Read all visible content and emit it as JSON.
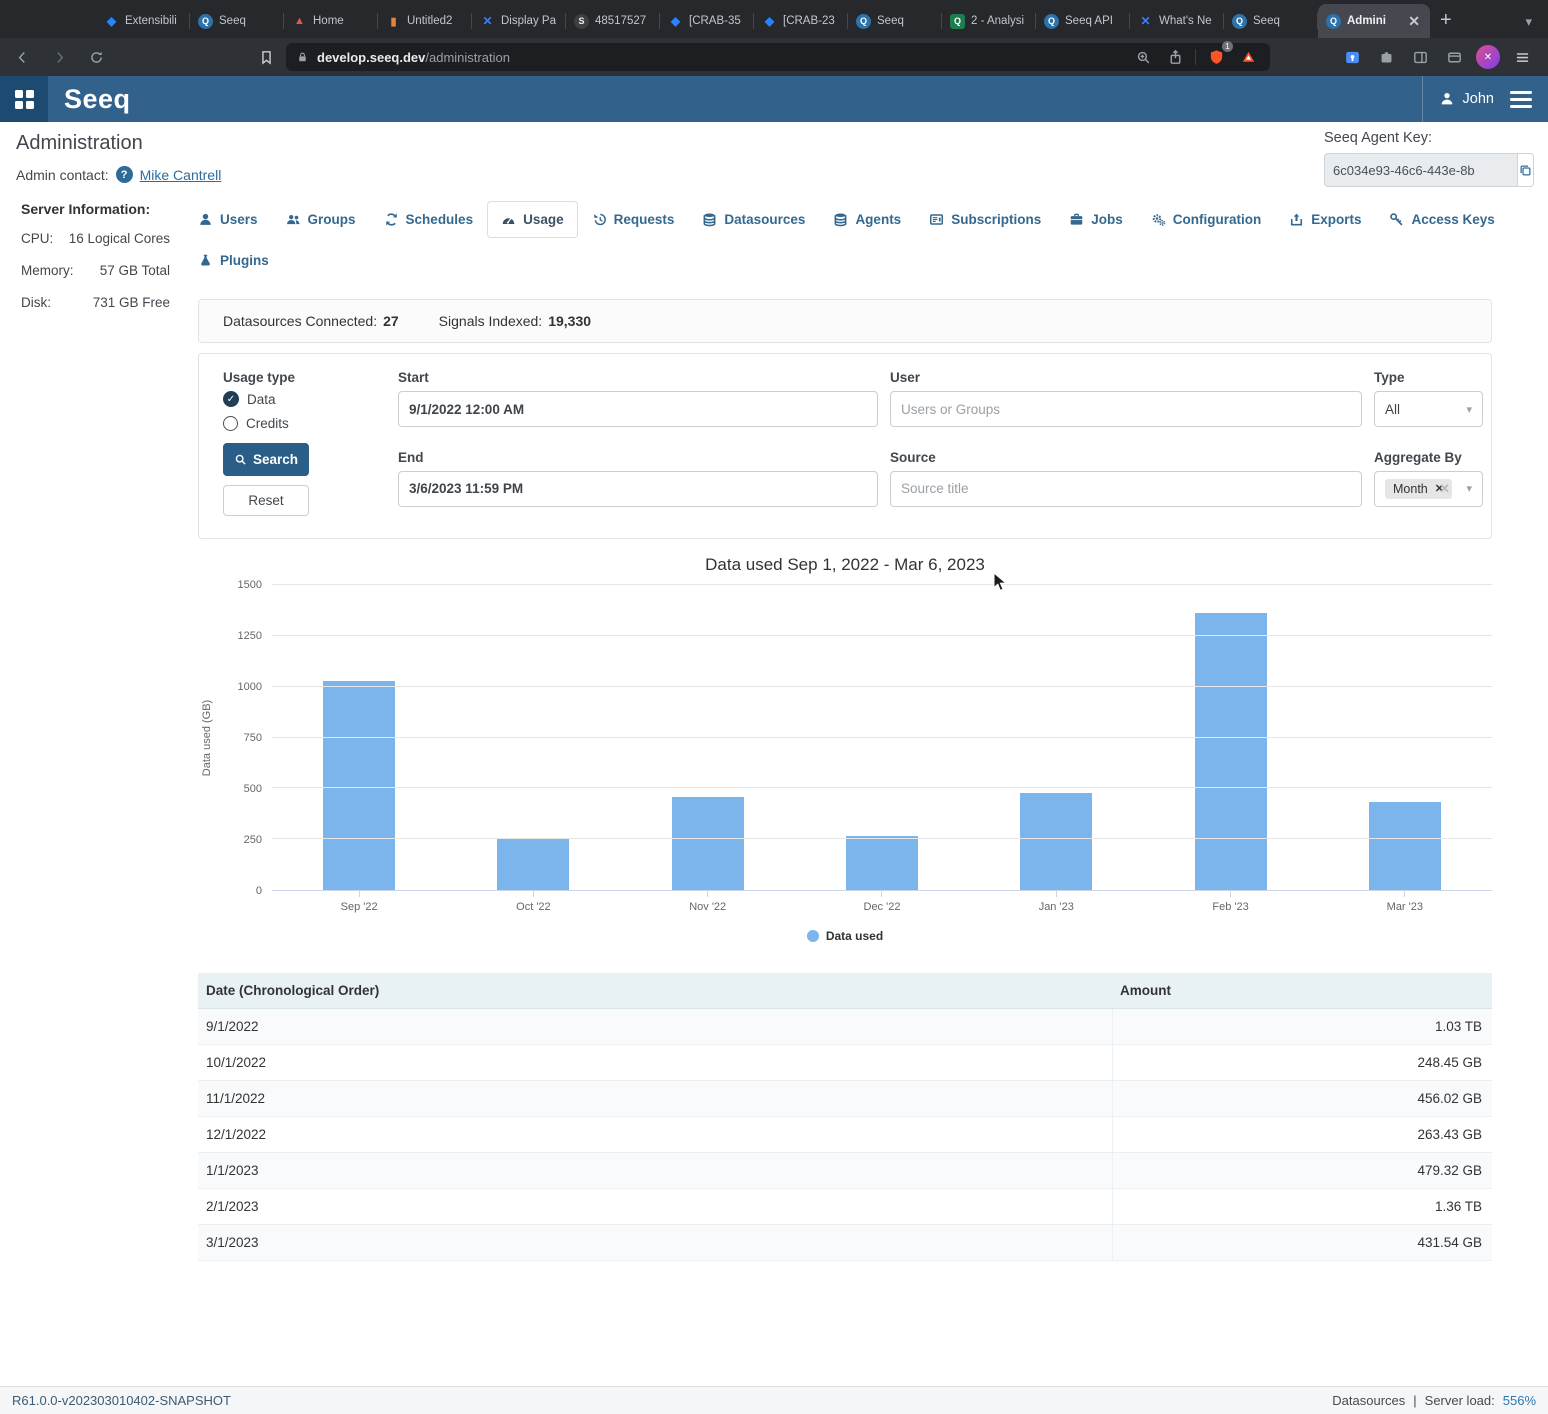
{
  "browser": {
    "tabs": [
      {
        "label": "Extensibili",
        "icon": "jira"
      },
      {
        "label": "Seeq",
        "icon": "seeq"
      },
      {
        "label": "Home",
        "icon": "home"
      },
      {
        "label": "Untitled2",
        "icon": "notebook"
      },
      {
        "label": "Display Pa",
        "icon": "xapp"
      },
      {
        "label": "48517527",
        "icon": "globe"
      },
      {
        "label": "[CRAB-35",
        "icon": "jira"
      },
      {
        "label": "[CRAB-23",
        "icon": "jira"
      },
      {
        "label": "Seeq",
        "icon": "seeq"
      },
      {
        "label": "2 - Analysi",
        "icon": "seeqgreen"
      },
      {
        "label": "Seeq API",
        "icon": "seeq"
      },
      {
        "label": "What's Ne",
        "icon": "xapp"
      },
      {
        "label": "Seeq",
        "icon": "seeq"
      },
      {
        "label": "Admini",
        "icon": "seeq",
        "active": true
      }
    ],
    "new_tab": "+",
    "url_domain": "develop.seeq.dev",
    "url_path": "/administration",
    "shield_badge": "1"
  },
  "appbar": {
    "brand": "Seeq",
    "user": "John"
  },
  "page": {
    "title": "Administration",
    "contact_label": "Admin contact:",
    "contact_name": "Mike Cantrell",
    "agent_key_label": "Seeq Agent Key:",
    "agent_key_value": "6c034e93-46c6-443e-8b",
    "server_heading": "Server Information:",
    "server_rows": [
      {
        "label": "CPU:",
        "value": "16 Logical Cores"
      },
      {
        "label": "Memory:",
        "value": "57 GB Total"
      },
      {
        "label": "Disk:",
        "value": "731 GB Free"
      }
    ]
  },
  "nav": {
    "tabs": [
      {
        "label": "Users",
        "icon": "user"
      },
      {
        "label": "Groups",
        "icon": "users"
      },
      {
        "label": "Schedules",
        "icon": "refresh"
      },
      {
        "label": "Usage",
        "icon": "gauge",
        "active": true
      },
      {
        "label": "Requests",
        "icon": "history"
      },
      {
        "label": "Datasources",
        "icon": "database"
      },
      {
        "label": "Agents",
        "icon": "database"
      },
      {
        "label": "Subscriptions",
        "icon": "subscriptions"
      },
      {
        "label": "Jobs",
        "icon": "briefcase"
      },
      {
        "label": "Configuration",
        "icon": "gears"
      },
      {
        "label": "Exports",
        "icon": "export"
      },
      {
        "label": "Access Keys",
        "icon": "key"
      },
      {
        "label": "Plugins",
        "icon": "flask",
        "row": 2
      }
    ]
  },
  "stats": {
    "datasources_label": "Datasources Connected:",
    "datasources_value": "27",
    "signals_label": "Signals Indexed:",
    "signals_value": "19,330"
  },
  "filters": {
    "start_label": "Start",
    "start_value": "9/1/2022 12:00 AM",
    "end_label": "End",
    "end_value": "3/6/2023 11:59 PM",
    "user_label": "User",
    "user_placeholder": "Users or Groups",
    "source_label": "Source",
    "source_placeholder": "Source title",
    "type_label": "Type",
    "type_value": "All",
    "aggregate_label": "Aggregate By",
    "aggregate_tag": "Month",
    "usage_type_label": "Usage type",
    "usage_option_data": "Data",
    "usage_option_credits": "Credits",
    "search_label": "Search",
    "reset_label": "Reset"
  },
  "chart_data": {
    "type": "bar",
    "title": "Data used Sep 1, 2022 - Mar 6, 2023",
    "categories": [
      "Sep '22",
      "Oct '22",
      "Nov '22",
      "Dec '22",
      "Jan '23",
      "Feb '23",
      "Mar '23"
    ],
    "values": [
      1030,
      248.45,
      456.02,
      263.43,
      479.32,
      1360,
      431.54
    ],
    "unit": "GB",
    "ylabel": "Data used (GB)",
    "ylim": [
      0,
      1500
    ],
    "ytick_step": 250,
    "grid": true,
    "bar_color": "#7cb5ec",
    "legend_position": "bottom",
    "legend": [
      {
        "label": "Data used",
        "color": "#7cb5ec"
      }
    ]
  },
  "table": {
    "columns": [
      "Date (Chronological Order)",
      "Amount"
    ],
    "rows": [
      [
        "9/1/2022",
        "1.03 TB"
      ],
      [
        "10/1/2022",
        "248.45 GB"
      ],
      [
        "11/1/2022",
        "456.02 GB"
      ],
      [
        "12/1/2022",
        "263.43 GB"
      ],
      [
        "1/1/2023",
        "479.32 GB"
      ],
      [
        "2/1/2023",
        "1.36 TB"
      ],
      [
        "3/1/2023",
        "431.54 GB"
      ]
    ]
  },
  "footer": {
    "version": "R61.0.0-v202303010402-SNAPSHOT",
    "datasources": "Datasources",
    "server_load_label": "Server load:",
    "server_load_value": "556%"
  }
}
